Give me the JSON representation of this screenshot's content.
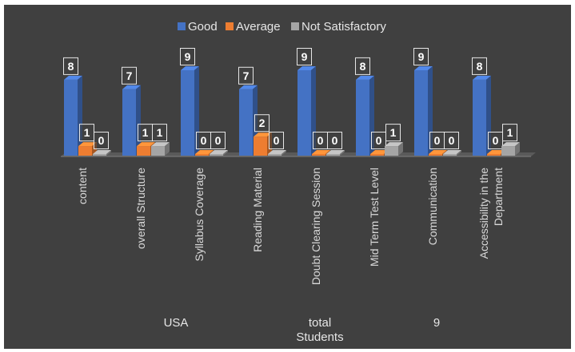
{
  "chart_data": {
    "type": "bar",
    "style": "3d-clustered-column",
    "categories": [
      "content",
      "overall Structure",
      "Syllabus Coverage",
      "Reading Material",
      "Doubt Clearing Session",
      "Mid Term Test Level",
      "Communication",
      "Accessibility in the Department"
    ],
    "series": [
      {
        "name": "Good",
        "color": "#4472c4",
        "values": [
          8,
          7,
          9,
          7,
          9,
          8,
          9,
          8
        ]
      },
      {
        "name": "Average",
        "color": "#ed7d31",
        "values": [
          1,
          1,
          0,
          2,
          0,
          0,
          0,
          0
        ]
      },
      {
        "name": "Not Satisfactory",
        "color": "#a5a5a5",
        "values": [
          0,
          1,
          0,
          0,
          0,
          1,
          0,
          1
        ]
      }
    ],
    "ylim": [
      0,
      9
    ],
    "legend_position": "top",
    "data_labels": true,
    "grid": false
  },
  "footer": {
    "left": "USA",
    "middle": "total\nStudents",
    "right": "9"
  }
}
